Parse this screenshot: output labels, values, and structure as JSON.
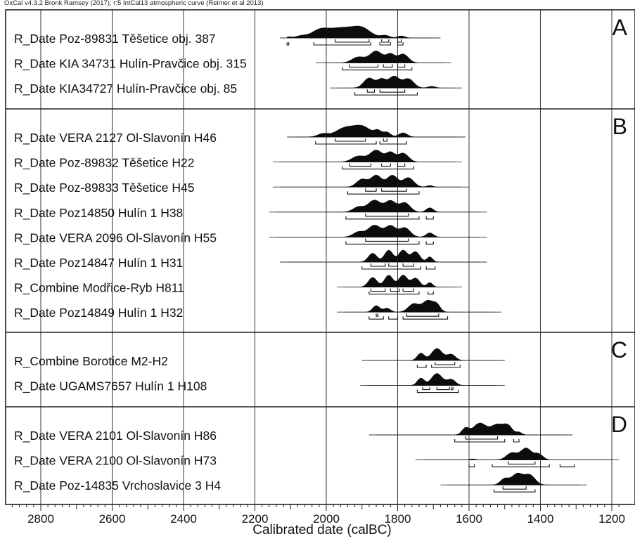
{
  "header": "OxCal v4.3.2 Bronk Ramsey (2017); r:5 IntCal13 atmospheric curve (Reimer et al 2013)",
  "chart_data": {
    "type": "calibrated-date-multiplot",
    "xlabel": "Calibrated date (calBC)",
    "xlim": [
      2900,
      1180
    ],
    "ticks": [
      2800,
      2600,
      2400,
      2200,
      2000,
      1800,
      1600,
      1400,
      1200
    ],
    "grid": true,
    "groups": [
      {
        "letter": "A",
        "items": [
          {
            "label": "R_Date Poz-89831 Těšetice obj. 387",
            "range": [
              2130,
              1680
            ],
            "peaks": [
              [
                2105,
                0.1,
                8
              ],
              [
                2070,
                0.2,
                15
              ],
              [
                2020,
                0.6,
                22
              ],
              [
                1960,
                1.0,
                40
              ],
              [
                1900,
                0.8,
                25
              ],
              [
                1835,
                0.25,
                12
              ],
              [
                1790,
                0.2,
                10
              ]
            ],
            "ranges68": [
              [
                1975,
                1880
              ],
              [
                1845,
                1825
              ],
              [
                1800,
                1790
              ]
            ],
            "ranges95": [
              [
                2110,
                2105
              ],
              [
                2035,
                1875
              ],
              [
                1850,
                1820
              ],
              [
                1800,
                1785
              ]
            ]
          },
          {
            "label": "R_Date KIA 34731 Hulín-Pravčice obj. 315",
            "range": [
              2030,
              1650
            ],
            "peaks": [
              [
                1910,
                0.4,
                18
              ],
              [
                1860,
                0.8,
                18
              ],
              [
                1820,
                0.55,
                12
              ],
              [
                1785,
                0.6,
                15
              ]
            ],
            "ranges68": [
              [
                1935,
                1855
              ],
              [
                1840,
                1815
              ],
              [
                1800,
                1780
              ]
            ],
            "ranges95": [
              [
                1955,
                1760
              ]
            ]
          },
          {
            "label": "R_Date KIA34727 Hulín-Pravčice obj. 85",
            "range": [
              1990,
              1620
            ],
            "peaks": [
              [
                1880,
                0.6,
                15
              ],
              [
                1845,
                0.5,
                12
              ],
              [
                1810,
                0.7,
                15
              ],
              [
                1770,
                0.55,
                15
              ],
              [
                1705,
                0.1,
                10
              ]
            ],
            "ranges68": [
              [
                1885,
                1865
              ],
              [
                1850,
                1780
              ]
            ],
            "ranges95": [
              [
                1920,
                1745
              ]
            ]
          }
        ]
      },
      {
        "letter": "B",
        "items": [
          {
            "label": "R_Date VERA 2127 Ol-Slavonín H46",
            "range": [
              2110,
              1610
            ],
            "peaks": [
              [
                2010,
                0.3,
                15
              ],
              [
                1950,
                0.8,
                25
              ],
              [
                1900,
                1.0,
                25
              ],
              [
                1855,
                0.5,
                10
              ],
              [
                1830,
                0.45,
                10
              ],
              [
                1785,
                0.4,
                12
              ]
            ],
            "ranges68": [
              [
                1975,
                1890
              ],
              [
                1840,
                1830
              ]
            ],
            "ranges95": [
              [
                2030,
                1860
              ],
              [
                1850,
                1775
              ]
            ]
          },
          {
            "label": "R_Date Poz-89832 Těšetice H22",
            "range": [
              2150,
              1620
            ],
            "peaks": [
              [
                1910,
                0.4,
                18
              ],
              [
                1860,
                0.8,
                18
              ],
              [
                1820,
                0.6,
                12
              ],
              [
                1785,
                0.6,
                15
              ]
            ],
            "ranges68": [
              [
                1935,
                1875
              ],
              [
                1845,
                1820
              ],
              [
                1800,
                1780
              ]
            ],
            "ranges95": [
              [
                1955,
                1755
              ]
            ]
          },
          {
            "label": "R_Date Poz-89833 Těšetice H45",
            "range": [
              2150,
              1600
            ],
            "peaks": [
              [
                1900,
                0.5,
                15
              ],
              [
                1860,
                0.75,
                15
              ],
              [
                1815,
                0.75,
                15
              ],
              [
                1770,
                0.6,
                15
              ],
              [
                1710,
                0.1,
                8
              ]
            ],
            "ranges68": [
              [
                1890,
                1860
              ],
              [
                1845,
                1775
              ]
            ],
            "ranges95": [
              [
                1940,
                1740
              ]
            ]
          },
          {
            "label": "R_Date Poz14850 Hulín 1 H38",
            "range": [
              2160,
              1550
            ],
            "peaks": [
              [
                1910,
                0.3,
                15
              ],
              [
                1865,
                0.7,
                18
              ],
              [
                1820,
                0.65,
                15
              ],
              [
                1780,
                0.55,
                15
              ],
              [
                1710,
                0.25,
                10
              ]
            ],
            "ranges68": [
              [
                1890,
                1770
              ]
            ],
            "ranges95": [
              [
                1945,
                1740
              ],
              [
                1720,
                1700
              ]
            ]
          },
          {
            "label": "R_Date VERA 2096 Ol-Slavonín H55",
            "range": [
              2160,
              1550
            ],
            "peaks": [
              [
                1910,
                0.3,
                15
              ],
              [
                1865,
                0.7,
                18
              ],
              [
                1820,
                0.65,
                15
              ],
              [
                1780,
                0.55,
                15
              ],
              [
                1710,
                0.25,
                10
              ]
            ],
            "ranges68": [
              [
                1890,
                1770
              ]
            ],
            "ranges95": [
              [
                1945,
                1740
              ],
              [
                1720,
                1700
              ]
            ]
          },
          {
            "label": "R_Date Poz14847 Hulín 1 H31",
            "range": [
              2130,
              1550
            ],
            "peaks": [
              [
                1870,
                0.6,
                12
              ],
              [
                1825,
                0.8,
                12
              ],
              [
                1785,
                0.8,
                12
              ],
              [
                1750,
                0.7,
                12
              ],
              [
                1710,
                0.35,
                8
              ]
            ],
            "ranges68": [
              [
                1875,
                1835
              ],
              [
                1825,
                1800
              ],
              [
                1785,
                1755
              ]
            ],
            "ranges95": [
              [
                1900,
                1735
              ],
              [
                1720,
                1695
              ]
            ]
          },
          {
            "label": "R_Combine Modřice-Ryb H811",
            "range": [
              1970,
              1620
            ],
            "peaks": [
              [
                1870,
                0.65,
                12
              ],
              [
                1825,
                0.8,
                12
              ],
              [
                1785,
                0.8,
                12
              ],
              [
                1750,
                0.6,
                12
              ],
              [
                1710,
                0.3,
                8
              ]
            ],
            "ranges68": [
              [
                1875,
                1835
              ],
              [
                1820,
                1795
              ],
              [
                1785,
                1755
              ]
            ],
            "ranges95": [
              [
                1880,
                1740
              ],
              [
                1715,
                1700
              ]
            ]
          },
          {
            "label": "R_Date Poz14849 Hulín 1 H32",
            "range": [
              1970,
              1510
            ],
            "peaks": [
              [
                1860,
                0.5,
                10
              ],
              [
                1830,
                0.3,
                10
              ],
              [
                1755,
                0.65,
                15
              ],
              [
                1715,
                0.9,
                15
              ],
              [
                1690,
                0.5,
                10
              ]
            ],
            "ranges68": [
              [
                1860,
                1855
              ],
              [
                1775,
                1685
              ]
            ],
            "ranges95": [
              [
                1880,
                1840
              ],
              [
                1825,
                1800
              ],
              [
                1785,
                1660
              ]
            ]
          }
        ]
      },
      {
        "letter": "C",
        "items": [
          {
            "label": "R_Combine Borotice M2-H2",
            "range": [
              1900,
              1500
            ],
            "peaks": [
              [
                1735,
                0.6,
                10
              ],
              [
                1690,
                1.0,
                15
              ],
              [
                1650,
                0.5,
                12
              ]
            ],
            "ranges68": [
              [
                1695,
                1640
              ]
            ],
            "ranges95": [
              [
                1745,
                1720
              ],
              [
                1705,
                1625
              ]
            ]
          },
          {
            "label": "R_Date UGAMS7657 Hulín 1 H108",
            "range": [
              1905,
              1500
            ],
            "peaks": [
              [
                1735,
                0.6,
                10
              ],
              [
                1690,
                1.0,
                15
              ],
              [
                1650,
                0.5,
                12
              ]
            ],
            "ranges68": [
              [
                1730,
                1710
              ],
              [
                1690,
                1655
              ],
              [
                1650,
                1645
              ]
            ],
            "ranges95": [
              [
                1745,
                1630
              ]
            ]
          }
        ]
      },
      {
        "letter": "D",
        "items": [
          {
            "label": "R_Date VERA 2101 Ol-Slavonín H86",
            "range": [
              1880,
              1310
            ],
            "peaks": [
              [
                1610,
                0.5,
                10
              ],
              [
                1570,
                0.9,
                18
              ],
              [
                1520,
                0.8,
                18
              ],
              [
                1490,
                0.6,
                12
              ],
              [
                1460,
                0.2,
                8
              ]
            ],
            "ranges68": [
              [
                1610,
                1520
              ]
            ],
            "ranges95": [
              [
                1640,
                1500
              ],
              [
                1475,
                1460
              ]
            ]
          },
          {
            "label": "R_Date VERA 2100 Ol-Slavonín H73",
            "range": [
              1750,
              1180
            ],
            "peaks": [
              [
                1590,
                0.08,
                8
              ],
              [
                1480,
                0.6,
                15
              ],
              [
                1440,
                1.0,
                15
              ],
              [
                1405,
                0.5,
                12
              ]
            ],
            "ranges68": [
              [
                1490,
                1415
              ]
            ],
            "ranges95": [
              [
                1600,
                1585
              ],
              [
                1535,
                1375
              ],
              [
                1345,
                1305
              ]
            ]
          },
          {
            "label": "R_Date Poz-14835 Vrchoslavice 3 H4",
            "range": [
              1680,
              1270
            ],
            "peaks": [
              [
                1500,
                0.5,
                12
              ],
              [
                1465,
                0.9,
                15
              ],
              [
                1430,
                0.8,
                15
              ]
            ],
            "ranges68": [
              [
                1505,
                1440
              ]
            ],
            "ranges95": [
              [
                1530,
                1415
              ]
            ]
          }
        ]
      }
    ]
  }
}
